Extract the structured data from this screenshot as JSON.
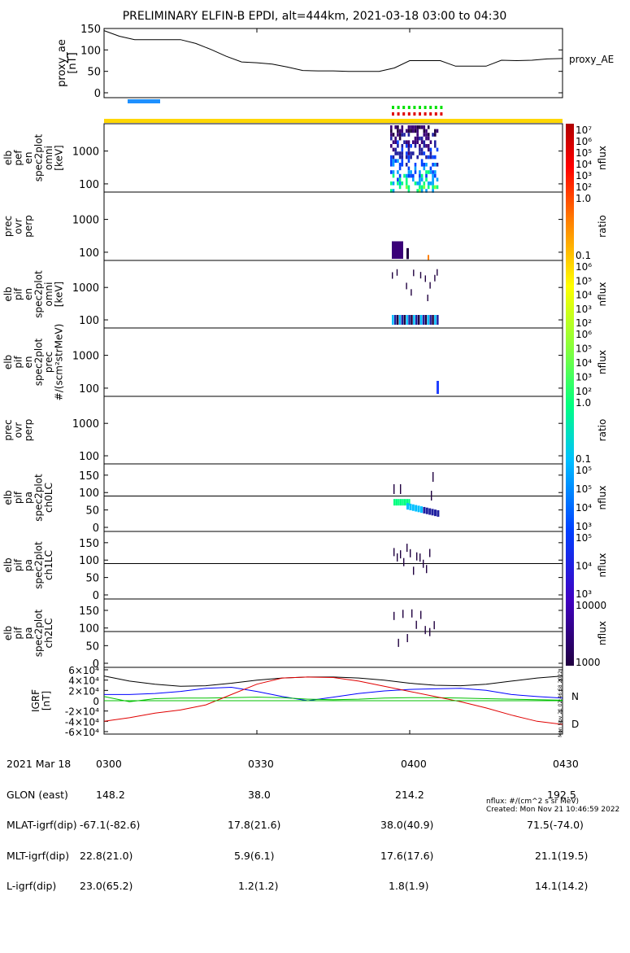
{
  "title": "PRELIMINARY ELFIN-B EPDI, alt=444km, 2021-03-18 03:00 to 04:30",
  "colors": {
    "black": "#000000",
    "blue": "#0000ff",
    "green": "#00c000",
    "red": "#e00000",
    "yellow": "#ffd700",
    "barblue": "#1e90ff",
    "ticks_green": "#00e000",
    "ticks_red": "#e00000"
  },
  "ae_panel": {
    "ylabel": "proxy_ae\n[nT]",
    "legend": "proxy_AE",
    "yticks": [
      "150",
      "100",
      "50",
      "0"
    ],
    "ylim": [
      0,
      150
    ]
  },
  "spectrogram_panels": [
    {
      "ylabel": "elb\npef\nen\nspec2plot\nomni\n[keV]",
      "yticks": [
        "1000",
        "100"
      ],
      "colorbar_label": "nflux",
      "colorbar_ticks": [
        "10⁷",
        "10⁶",
        "10⁵",
        "10⁴",
        "10³",
        "10²"
      ]
    },
    {
      "ylabel": "prec\novr\nperp",
      "yticks": [
        "1000",
        "100"
      ],
      "colorbar_label": "ratio",
      "colorbar_ticks": [
        "1.0",
        "0.1"
      ]
    },
    {
      "ylabel": "elb\npif\nen\nspec2plot\nomni\n[keV]",
      "yticks": [
        "1000",
        "100"
      ],
      "colorbar_label": "nflux",
      "colorbar_ticks": [
        "10⁶",
        "10⁵",
        "10⁴",
        "10³",
        "10²"
      ]
    },
    {
      "ylabel": "elb\npif\nen\nspec2plot\nprec\n#/(scm²strMeV)",
      "yticks": [
        "1000",
        "100"
      ],
      "colorbar_label": "nflux",
      "colorbar_ticks": [
        "10⁶",
        "10⁵",
        "10⁴",
        "10³",
        "10²"
      ]
    },
    {
      "ylabel": "prec\novr\nperp",
      "yticks": [
        "1000",
        "100"
      ],
      "colorbar_label": "ratio",
      "colorbar_ticks": [
        "1.0",
        "0.1"
      ]
    },
    {
      "ylabel": "elb\npif\npa\nspec2plot\nch0LC",
      "yticks": [
        "150",
        "100",
        "50",
        "0"
      ],
      "colorbar_label": "nflux",
      "colorbar_ticks": [
        "10⁵",
        "10⁵",
        "10⁴",
        "10³"
      ]
    },
    {
      "ylabel": "elb\npif\npa\nspec2plot\nch1LC",
      "yticks": [
        "150",
        "100",
        "50",
        "0"
      ],
      "colorbar_label": "nflux",
      "colorbar_ticks": [
        "10⁵",
        "10⁴",
        "10³"
      ]
    },
    {
      "ylabel": "elb\npif\npa\nspec2plot\nch2LC",
      "yticks": [
        "150",
        "100",
        "50",
        "0"
      ],
      "colorbar_label": "nflux",
      "colorbar_ticks": [
        "10000",
        "1000"
      ]
    }
  ],
  "igrf_panel": {
    "ylabel": "IGRF\n[nT]",
    "yticks": [
      "6×10⁴",
      "4×10⁴",
      "2×10⁴",
      "0",
      "-2×10⁴",
      "-4×10⁴",
      "-6×10⁴"
    ],
    "ylim": [
      -60000,
      60000
    ],
    "legend": [
      "N",
      "D"
    ],
    "side_stamp": "Mon Nov 21 02:46:58 2022"
  },
  "footer": {
    "rows": [
      [
        "2021 Mar 18",
        "0300",
        "0330",
        "0400",
        "0430"
      ],
      [
        "GLON (east)",
        "148.2",
        "38.0",
        "214.2",
        "192.5"
      ],
      [
        "MLAT-igrf(dip)",
        "-67.1(-82.6)",
        "17.8(21.6)",
        "38.0(40.9)",
        "71.5(-74.0)"
      ],
      [
        "MLT-igrf(dip)",
        "22.8(21.0)",
        "5.9(6.1)",
        "17.6(17.6)",
        "21.1(19.5)"
      ],
      [
        "L-igrf(dip)",
        "23.0(65.2)",
        "1.2(1.2)",
        "1.8(1.9)",
        "14.1(14.2)"
      ]
    ],
    "units_note": "nflux: #/(cm^2 s sr MeV)",
    "created": "Created: Mon Nov 21 10:46:59 2022"
  },
  "chart_data": [
    {
      "type": "line",
      "ylabel": "proxy_ae [nT]",
      "x_time": [
        "03:00",
        "03:03",
        "03:06",
        "03:09",
        "03:12",
        "03:15",
        "03:18",
        "03:21",
        "03:24",
        "03:27",
        "03:30",
        "03:33",
        "03:36",
        "03:39",
        "03:42",
        "03:45",
        "03:48",
        "03:51",
        "03:54",
        "03:57",
        "04:00",
        "04:03",
        "04:06",
        "04:09",
        "04:12",
        "04:15",
        "04:18",
        "04:21",
        "04:24",
        "04:27",
        "04:30"
      ],
      "series": [
        {
          "name": "proxy_AE",
          "values": [
            145,
            132,
            124,
            124,
            124,
            124,
            115,
            101,
            85,
            72,
            70,
            67,
            60,
            52,
            51,
            51,
            50,
            50,
            50,
            58,
            75,
            75,
            75,
            62,
            62,
            62,
            76,
            75,
            76,
            79,
            80
          ]
        }
      ],
      "ylim": [
        0,
        150
      ]
    },
    {
      "type": "line",
      "ylabel": "IGRF [nT]",
      "x_time": [
        "03:00",
        "03:05",
        "03:10",
        "03:15",
        "03:20",
        "03:25",
        "03:30",
        "03:35",
        "03:40",
        "03:45",
        "03:50",
        "03:55",
        "04:00",
        "04:05",
        "04:10",
        "04:15",
        "04:20",
        "04:25",
        "04:30"
      ],
      "series": [
        {
          "values": [
            48000,
            38000,
            32000,
            28000,
            29000,
            34000,
            40000,
            44000,
            46000,
            46000,
            44000,
            40000,
            34000,
            30000,
            29000,
            32000,
            38000,
            44000,
            48000
          ]
        },
        {
          "name": "N",
          "values": [
            12000,
            12000,
            14000,
            18000,
            24000,
            26000,
            18000,
            8000,
            0,
            7000,
            14000,
            19000,
            22000,
            23000,
            24000,
            20000,
            12000,
            8000,
            5000
          ]
        },
        {
          "values": [
            8000,
            -2000,
            4000,
            5000,
            5000,
            6000,
            7000,
            6000,
            3000,
            2000,
            3000,
            5000,
            6000,
            6000,
            5000,
            4000,
            3000,
            2000,
            1000
          ]
        },
        {
          "name": "D",
          "values": [
            -40000,
            -33000,
            -24000,
            -18000,
            -8000,
            12000,
            32000,
            44000,
            46000,
            45000,
            38000,
            28000,
            18000,
            8000,
            -2000,
            -14000,
            -28000,
            -40000,
            -46000
          ]
        }
      ],
      "ylim": [
        -60000,
        60000
      ]
    }
  ]
}
